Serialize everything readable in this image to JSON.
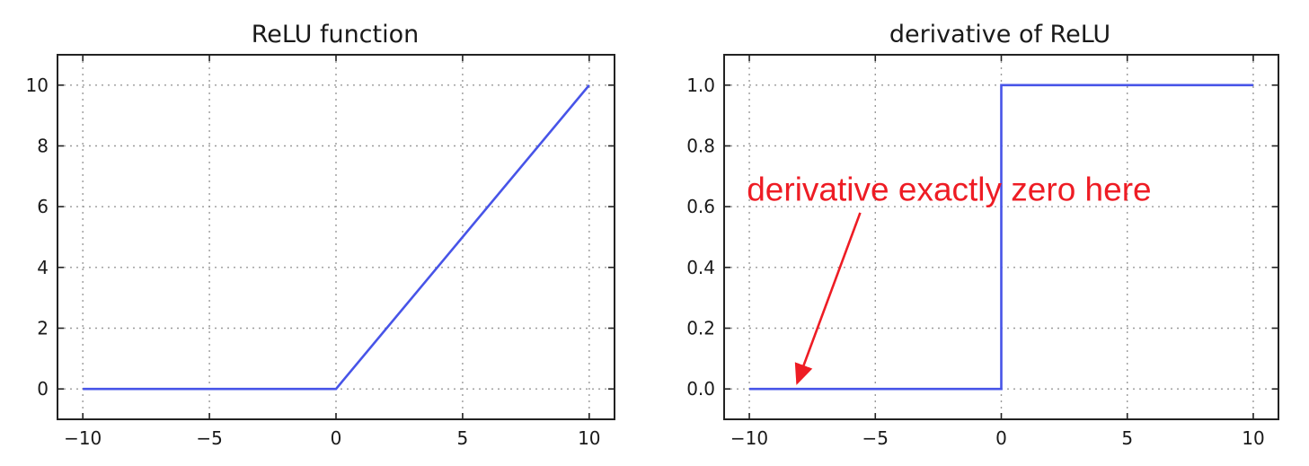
{
  "chart_data": [
    {
      "type": "line",
      "title": "ReLU function",
      "xlabel": "",
      "ylabel": "",
      "xlim": [
        -11,
        11
      ],
      "ylim": [
        -1,
        11
      ],
      "grid": true,
      "xticks": [
        -10,
        -5,
        0,
        5,
        10
      ],
      "xtick_labels": [
        "−10",
        "−5",
        "0",
        "5",
        "10"
      ],
      "yticks": [
        0,
        2,
        4,
        6,
        8,
        10
      ],
      "ytick_labels": [
        "0",
        "2",
        "4",
        "6",
        "8",
        "10"
      ],
      "series": [
        {
          "x": [
            -10,
            0,
            10
          ],
          "y": [
            0,
            0,
            10
          ],
          "color": "#4754e8"
        }
      ]
    },
    {
      "type": "line",
      "title": "derivative of ReLU",
      "xlabel": "",
      "ylabel": "",
      "xlim": [
        -11,
        11
      ],
      "ylim": [
        -0.1,
        1.1
      ],
      "grid": true,
      "xticks": [
        -10,
        -5,
        0,
        5,
        10
      ],
      "xtick_labels": [
        "−10",
        "−5",
        "0",
        "5",
        "10"
      ],
      "yticks": [
        0.0,
        0.2,
        0.4,
        0.6,
        0.8,
        1.0
      ],
      "ytick_labels": [
        "0.0",
        "0.2",
        "0.4",
        "0.6",
        "0.8",
        "1.0"
      ],
      "series": [
        {
          "x": [
            -10,
            0,
            0,
            10
          ],
          "y": [
            0,
            0,
            1,
            1
          ],
          "color": "#4754e8"
        }
      ],
      "annotation": {
        "text": "derivative exactly zero here",
        "color": "#ee1c24",
        "text_at": [
          -10.1,
          0.62
        ],
        "arrow_from": [
          -5.6,
          0.58
        ],
        "arrow_to": [
          -8.1,
          0.02
        ]
      }
    }
  ]
}
